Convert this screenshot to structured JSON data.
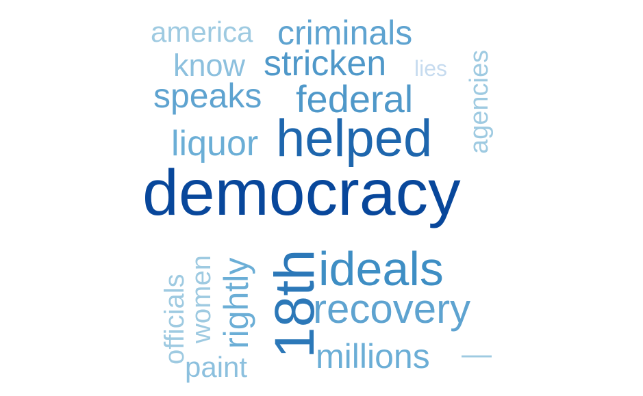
{
  "word_cloud": {
    "words": [
      {
        "text": "democracy",
        "color": "#08479b"
      },
      {
        "text": "helped",
        "color": "#1e66ad"
      },
      {
        "text": "18th",
        "color": "#2c78b8"
      },
      {
        "text": "ideals",
        "color": "#3e8ec4"
      },
      {
        "text": "recovery",
        "color": "#5ea3d0"
      },
      {
        "text": "federal",
        "color": "#4f98c9"
      },
      {
        "text": "stricken",
        "color": "#4f98c9"
      },
      {
        "text": "criminals",
        "color": "#5ea3d0"
      },
      {
        "text": "speaks",
        "color": "#5ea3d0"
      },
      {
        "text": "liquor",
        "color": "#6baed6"
      },
      {
        "text": "millions",
        "color": "#6baed6"
      },
      {
        "text": "rightly",
        "color": "#6baed6"
      },
      {
        "text": "america",
        "color": "#9ecae1"
      },
      {
        "text": "know",
        "color": "#8cc0de"
      },
      {
        "text": "lies",
        "color": "#c6dbef"
      },
      {
        "text": "agencies",
        "color": "#9ecae1"
      },
      {
        "text": "officials",
        "color": "#9ecae1"
      },
      {
        "text": "women",
        "color": "#9ecae1"
      },
      {
        "text": "paint",
        "color": "#8cc0de"
      },
      {
        "text": "—",
        "color": "#9ecae1"
      }
    ]
  }
}
